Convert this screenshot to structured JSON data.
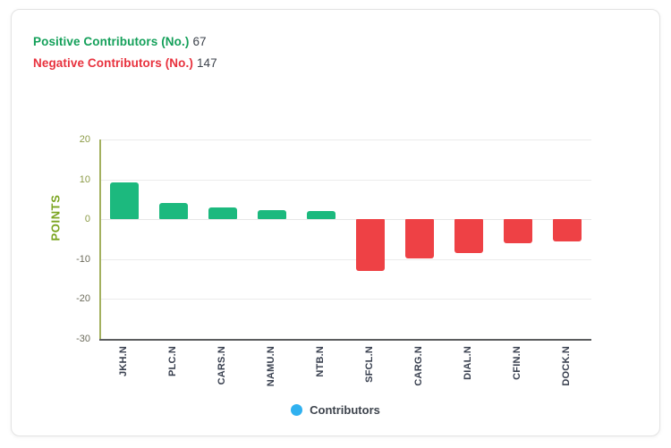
{
  "header": {
    "positive_label": "Positive Contributors (No.)",
    "positive_value": "67",
    "negative_label": "Negative Contributors (No.)",
    "negative_value": "147",
    "positive_color": "#14a05a",
    "negative_color": "#e8323e"
  },
  "chart_data": {
    "type": "bar",
    "title": "",
    "xlabel": "",
    "ylabel": "POINTS",
    "categories": [
      "JKH.N",
      "PLC.N",
      "CARS.N",
      "NAMU.N",
      "NTB.N",
      "SFCL.N",
      "CARG.N",
      "DIAL.N",
      "CFIN.N",
      "DOCK.N"
    ],
    "values": [
      9.3,
      4.0,
      2.9,
      2.3,
      2.0,
      -13.0,
      -9.8,
      -8.5,
      -6.1,
      -5.7
    ],
    "ylim": [
      -30,
      20
    ],
    "yticks": [
      20,
      10,
      0,
      -10,
      -20,
      -30
    ],
    "grid": true,
    "legend_position": "bottom",
    "legend": [
      {
        "label": "Contributors",
        "color": "#30b1f0"
      }
    ],
    "colors": {
      "positive_bar": "#1cb97e",
      "negative_bar": "#ee4145",
      "y_axis_line": "#a3b05f",
      "x_axis_line": "#5b5c5e",
      "ylabel_text": "#7aa41f",
      "ytick_positive": "#8b9a45",
      "ytick_negative": "#6b6a5a",
      "xtick_text": "#3a4150"
    }
  }
}
